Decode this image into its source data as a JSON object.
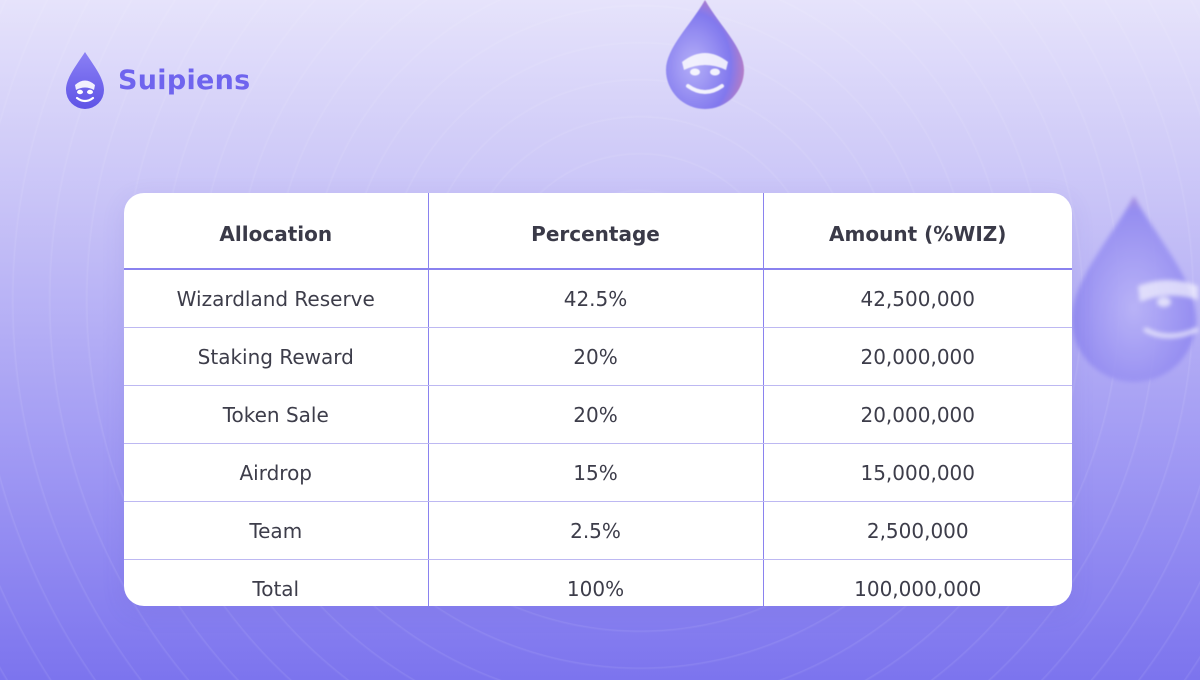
{
  "brand": {
    "name": "Suipiens",
    "accent_color": "#6f64ee"
  },
  "decorations": {
    "icon": "water-drop-ape-icon"
  },
  "table": {
    "headers": [
      "Allocation",
      "Percentage",
      "Amount (%WIZ)"
    ],
    "rows": [
      [
        "Wizardland Reserve",
        "42.5%",
        "42,500,000"
      ],
      [
        "Staking Reward",
        "20%",
        "20,000,000"
      ],
      [
        "Token Sale",
        "20%",
        "20,000,000"
      ],
      [
        "Airdrop",
        "15%",
        "15,000,000"
      ],
      [
        "Team",
        "2.5%",
        "2,500,000"
      ],
      [
        "Total",
        "100%",
        "100,000,000"
      ]
    ],
    "border_color": "#8a82ef"
  }
}
